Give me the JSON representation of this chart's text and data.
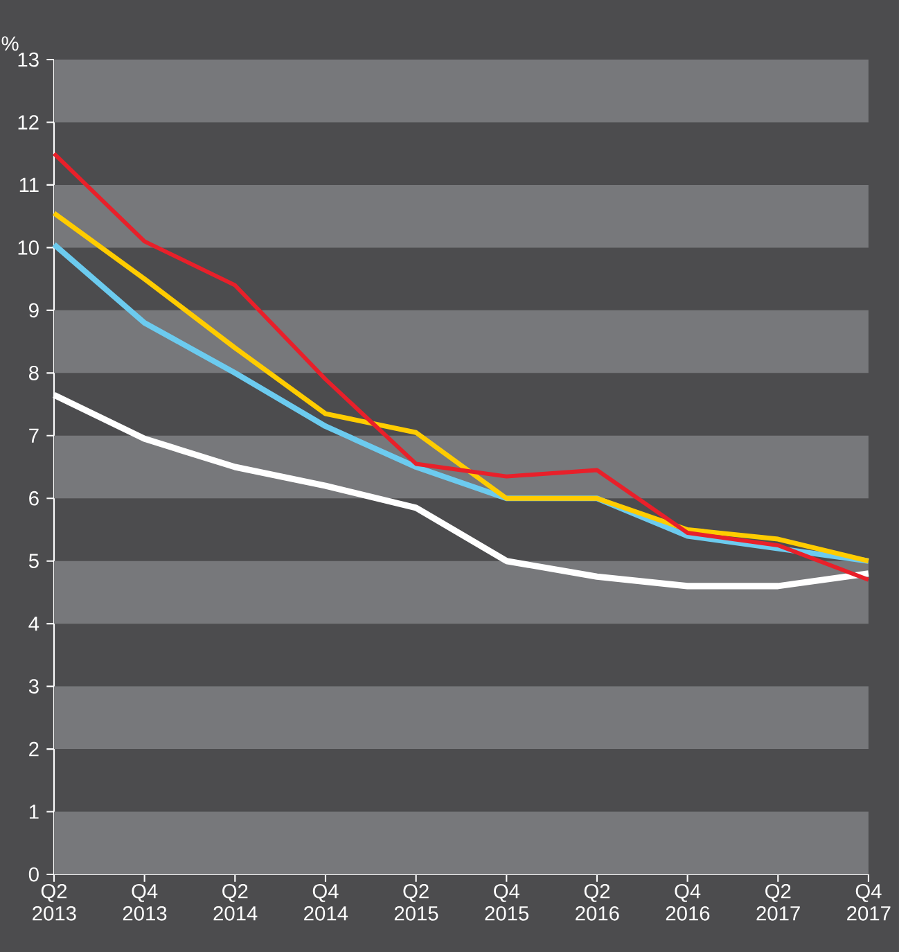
{
  "chart_data": {
    "type": "line",
    "ylabel": "%",
    "categories": [
      "Q2 2013",
      "Q4 2013",
      "Q2 2014",
      "Q4 2014",
      "Q2 2015",
      "Q4 2015",
      "Q2 2016",
      "Q4 2016",
      "Q2 2017",
      "Q4 2017"
    ],
    "series": [
      {
        "color": "#ffffff",
        "values": [
          7.65,
          6.95,
          6.5,
          6.2,
          5.85,
          5.0,
          4.75,
          4.6,
          4.6,
          4.8
        ]
      },
      {
        "color": "#6ccbef",
        "values": [
          10.05,
          8.8,
          8.0,
          7.15,
          6.5,
          6.0,
          6.0,
          5.4,
          5.2,
          5.0
        ]
      },
      {
        "color": "#ffcc00",
        "values": [
          10.55,
          9.5,
          8.4,
          7.35,
          7.05,
          6.0,
          6.0,
          5.5,
          5.35,
          5.0
        ]
      },
      {
        "color": "#e8202a",
        "values": [
          11.5,
          10.1,
          9.4,
          7.9,
          6.55,
          6.35,
          6.45,
          5.45,
          5.25,
          4.7
        ]
      }
    ],
    "ylim": [
      0,
      13
    ],
    "yticks": [
      0,
      1,
      2,
      3,
      4,
      5,
      6,
      7,
      8,
      9,
      10,
      11,
      12,
      13
    ],
    "bands": [
      {
        "axis": "y",
        "from": 0,
        "to": 1,
        "color": "#77787b"
      },
      {
        "axis": "y",
        "from": 2,
        "to": 3,
        "color": "#77787b"
      },
      {
        "axis": "y",
        "from": 4,
        "to": 5,
        "color": "#77787b"
      },
      {
        "axis": "y",
        "from": 6,
        "to": 7,
        "color": "#77787b"
      },
      {
        "axis": "y",
        "from": 8,
        "to": 9,
        "color": "#77787b"
      },
      {
        "axis": "y",
        "from": 10,
        "to": 11,
        "color": "#77787b"
      },
      {
        "axis": "y",
        "from": 12,
        "to": 13,
        "color": "#77787b"
      }
    ]
  }
}
